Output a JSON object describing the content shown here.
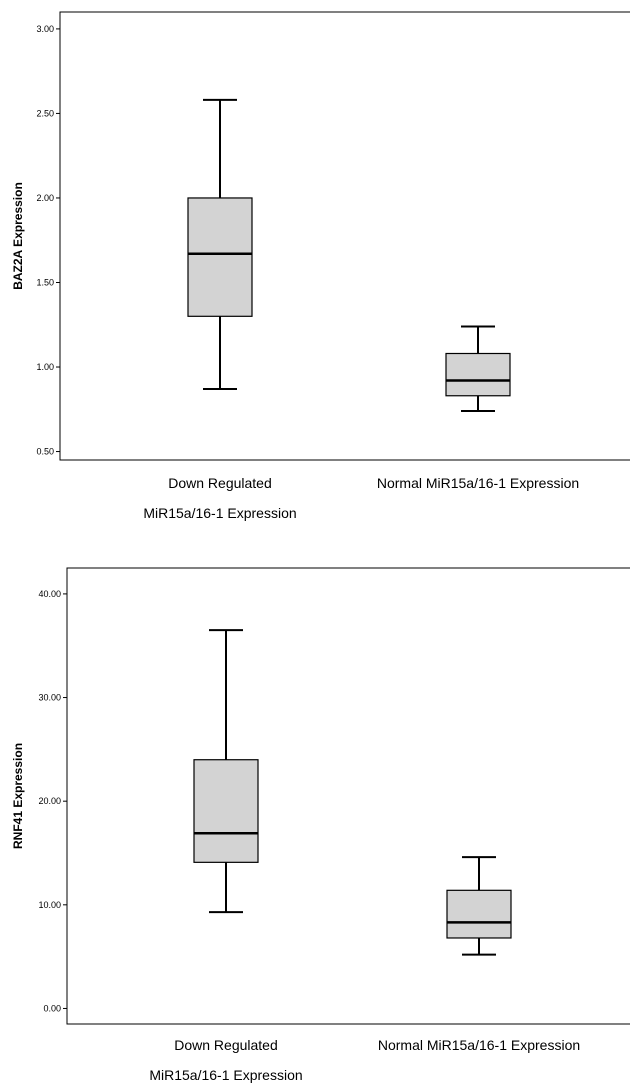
{
  "chart_data": [
    {
      "type": "box",
      "ylabel": "BAZ2A Expression",
      "ylim": [
        0.45,
        3.1
      ],
      "yticks": [
        "0.50",
        "1.00",
        "1.50",
        "2.00",
        "2.50",
        "3.00"
      ],
      "ytick_values": [
        0.5,
        1.0,
        1.5,
        2.0,
        2.5,
        3.0
      ],
      "categories": [
        {
          "label_line1": "Down Regulated",
          "label_line2": "MiR15a/16-1 Expression"
        },
        {
          "label_line1": "Normal MiR15a/16-1 Expression",
          "label_line2": ""
        }
      ],
      "boxes": [
        {
          "min": 0.87,
          "q1": 1.3,
          "median": 1.67,
          "q3": 2.0,
          "max": 2.58
        },
        {
          "min": 0.74,
          "q1": 0.83,
          "median": 0.92,
          "q3": 1.08,
          "max": 1.24
        }
      ],
      "grid": false,
      "box_fill": "#d3d3d3"
    },
    {
      "type": "box",
      "ylabel": "RNF41 Expression",
      "ylim": [
        -1.5,
        42.5
      ],
      "yticks": [
        "0.00",
        "10.00",
        "20.00",
        "30.00",
        "40.00"
      ],
      "ytick_values": [
        0,
        10,
        20,
        30,
        40
      ],
      "categories": [
        {
          "label_line1": "Down Regulated",
          "label_line2": "MiR15a/16-1 Expression"
        },
        {
          "label_line1": "Normal MiR15a/16-1 Expression",
          "label_line2": ""
        }
      ],
      "boxes": [
        {
          "min": 9.3,
          "q1": 14.1,
          "median": 16.9,
          "q3": 24.0,
          "max": 36.5
        },
        {
          "min": 5.2,
          "q1": 6.8,
          "median": 8.3,
          "q3": 11.4,
          "max": 14.6
        }
      ],
      "grid": false,
      "box_fill": "#d3d3d3"
    }
  ]
}
